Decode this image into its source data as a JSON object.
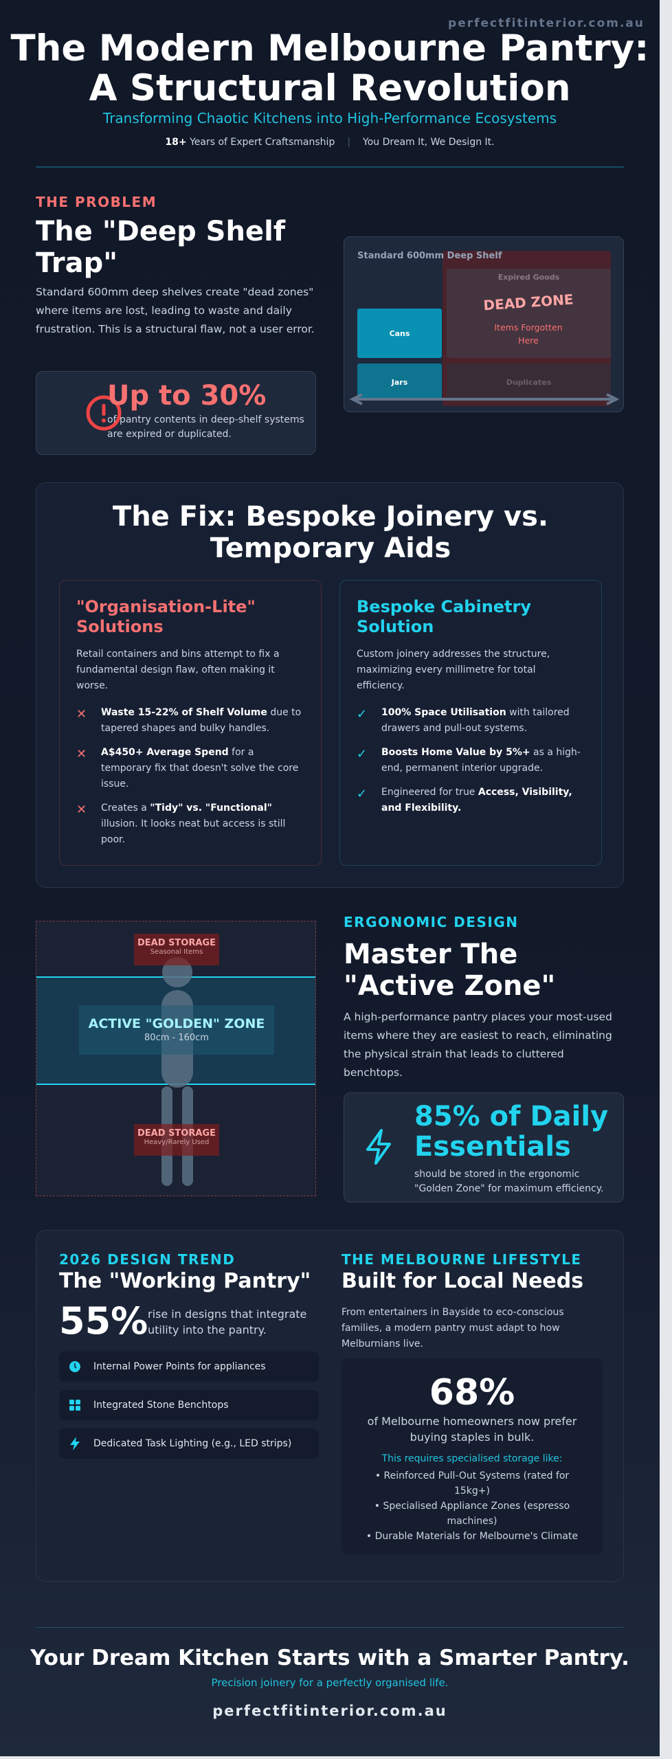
{
  "header": {
    "site_url": "perfectfitinterior.com.au",
    "title_line1": "The Modern Melbourne Pantry:",
    "title_line2": "A Structural Revolution",
    "subtitle": "Transforming Chaotic Kitchens into High-Performance Ecosystems",
    "years": "18+",
    "years_text": "Years of Expert Craftsmanship",
    "separator": "|",
    "slogan": "You Dream It, We Design It."
  },
  "problem": {
    "label": "THE PROBLEM",
    "heading": "The \"Deep Shelf Trap\"",
    "body": "Standard 600mm deep shelves create \"dead zones\" where items are lost, leading to waste and daily frustration. This is a structural flaw, not a user error.",
    "stat_value": "Up to 30%",
    "stat_text": "of pantry contents in deep-shelf systems are expired or duplicated.",
    "icon": "alert-circle-icon",
    "diagram": {
      "title": "Standard 600mm Deep Shelf",
      "cans": "Cans",
      "jars": "Jars",
      "expired": "Expired Goods",
      "duplicates": "Duplicates",
      "dead_zone": "DEAD ZONE",
      "forgotten": "Items Forgotten Here"
    }
  },
  "fix": {
    "heading": "The Fix: Bespoke Joinery vs. Temporary Aids",
    "lite": {
      "title": "\"Organisation-Lite\" Solutions",
      "desc": "Retail containers and bins attempt to fix a fundamental design flaw, often making it worse.",
      "items": [
        {
          "bold": "Waste 15-22% of Shelf Volume",
          "pre": "",
          "text": " due to tapered shapes and bulky handles."
        },
        {
          "bold": "A$450+ Average Spend",
          "pre": "",
          "text": " for a temporary fix that doesn't solve the core issue."
        },
        {
          "pre": "Creates a ",
          "bold": "\"Tidy\" vs. \"Functional\"",
          "text": " illusion. It looks neat but access is still poor."
        }
      ]
    },
    "bespoke": {
      "title": "Bespoke Cabinetry Solution",
      "desc": "Custom joinery addresses the structure, maximizing every millimetre for total efficiency.",
      "items": [
        {
          "pre": "",
          "bold": "100% Space Utilisation",
          "text": " with tailored drawers and pull-out systems."
        },
        {
          "pre": "",
          "bold": "Boosts Home Value by 5%+",
          "text": " as a high-end, permanent interior upgrade."
        },
        {
          "pre": "Engineered for true ",
          "bold": "Access, Visibility, and Flexibility.",
          "text": ""
        }
      ]
    }
  },
  "ergonomic": {
    "label": "ERGONOMIC DESIGN",
    "heading_line1": "Master The",
    "heading_line2": "\"Active Zone\"",
    "body": "A high-performance pantry places your most-used items where they are easiest to reach, eliminating the physical strain that leads to cluttered benchtops.",
    "stat_value": "85% of Daily Essentials",
    "stat_text": "should be stored in the ergonomic \"Golden Zone\" for maximum efficiency.",
    "icon": "lightning-bolt-icon",
    "diagram": {
      "top_title": "DEAD STORAGE",
      "top_sub": "Seasonal Items",
      "zone_title": "ACTIVE \"GOLDEN\" ZONE",
      "zone_range": "80cm - 160cm",
      "bottom_title": "DEAD STORAGE",
      "bottom_sub": "Heavy/Rarely Used"
    }
  },
  "trend": {
    "label": "2026 DESIGN TREND",
    "heading": "The \"Working Pantry\"",
    "stat_value": "55%",
    "stat_text": "rise in designs that integrate utility into the pantry.",
    "features": [
      {
        "icon": "clock-icon",
        "text": "Internal Power Points for appliances"
      },
      {
        "icon": "grid-icon",
        "text": "Integrated Stone Benchtops"
      },
      {
        "icon": "lightning-icon",
        "text": "Dedicated Task Lighting (e.g., LED strips)"
      }
    ]
  },
  "lifestyle": {
    "label": "THE MELBOURNE LIFESTYLE",
    "heading": "Built for Local Needs",
    "body": "From entertainers in Bayside to eco-conscious families, a modern pantry must adapt to how Melburnians live.",
    "stat_value": "68%",
    "stat_text": "of Melbourne homeowners now prefer buying staples in bulk.",
    "requires": "This requires specialised storage like:",
    "items": [
      "• Reinforced Pull-Out Systems (rated for 15kg+)",
      "• Specialised Appliance Zones (espresso machines)",
      "• Durable Materials for Melbourne's Climate"
    ]
  },
  "footer": {
    "heading": "Your Dream Kitchen Starts with a Smarter Pantry.",
    "sub": "Precision joinery for a perfectly organised life.",
    "url": "perfectfitinterior.com.au"
  },
  "colors": {
    "accent": "#22d3ee",
    "danger": "#f87171",
    "background": "#111827"
  }
}
